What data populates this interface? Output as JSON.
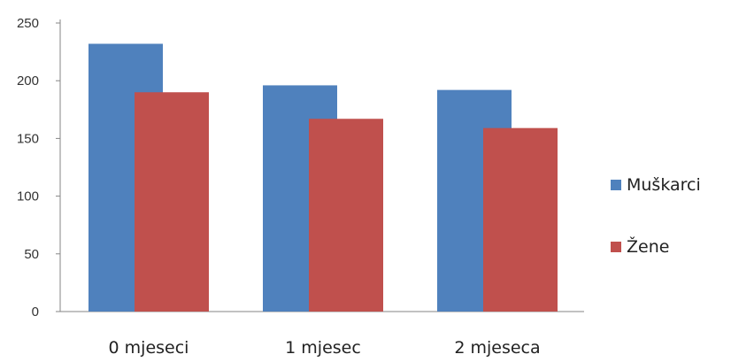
{
  "chart_data": {
    "type": "bar",
    "categories": [
      "0 mjeseci",
      "1 mjesec",
      "2 mjeseca"
    ],
    "series": [
      {
        "name": "Muškarci",
        "values": [
          232,
          196,
          192
        ],
        "color": "#4F81BD"
      },
      {
        "name": "Žene",
        "values": [
          190,
          167,
          159
        ],
        "color": "#C0504D"
      }
    ],
    "yticks": [
      "0",
      "50",
      "100",
      "150",
      "200",
      "250"
    ],
    "ylim": [
      0,
      250
    ],
    "grid": false,
    "legend_position": "right"
  }
}
